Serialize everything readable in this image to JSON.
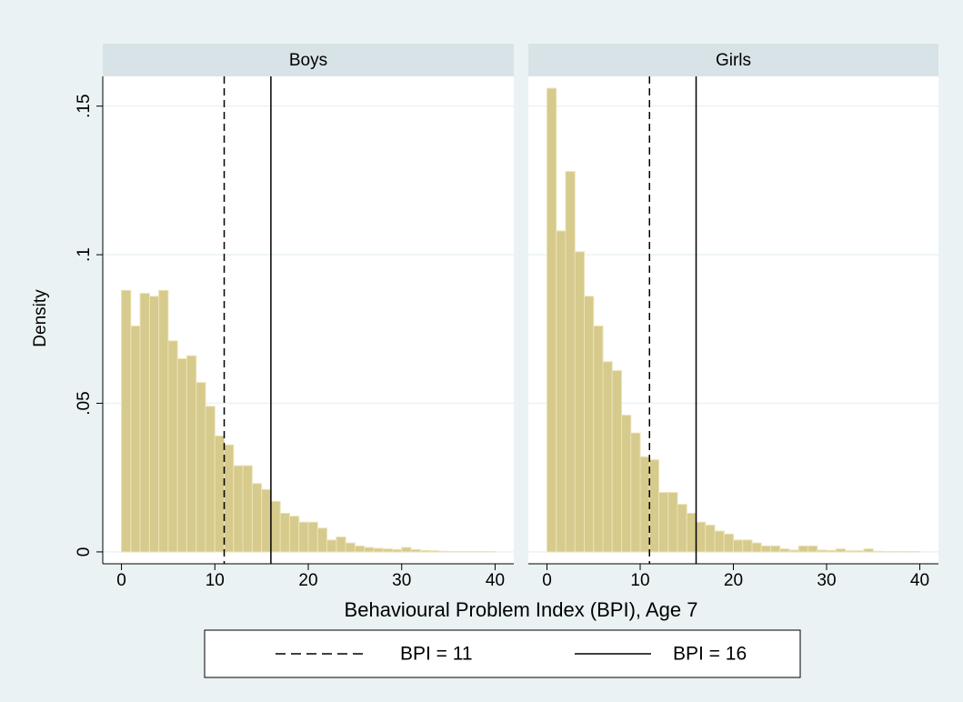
{
  "chart_data": [
    {
      "type": "histogram",
      "title": "Boys",
      "bins": [
        0,
        1,
        2,
        3,
        4,
        5,
        6,
        7,
        8,
        9,
        10,
        11,
        12,
        13,
        14,
        15,
        16,
        17,
        18,
        19,
        20,
        21,
        22,
        23,
        24,
        25,
        26,
        27,
        28,
        29,
        30,
        31,
        32,
        33,
        34,
        35,
        36,
        37,
        38,
        39,
        40
      ],
      "values": [
        0.088,
        0.076,
        0.087,
        0.086,
        0.088,
        0.071,
        0.065,
        0.066,
        0.057,
        0.049,
        0.039,
        0.036,
        0.029,
        0.029,
        0.023,
        0.021,
        0.017,
        0.013,
        0.012,
        0.01,
        0.01,
        0.008,
        0.004,
        0.005,
        0.003,
        0.002,
        0.0015,
        0.0012,
        0.001,
        0.0008,
        0.0015,
        0.0008,
        0.0005,
        0.0004,
        0.0002,
        0.0001,
        0.0001,
        0.0001,
        0.0001,
        0.0001
      ],
      "color": "#d6ca8c",
      "xlim": [
        -2,
        42
      ],
      "ylim": [
        -0.004,
        0.16
      ],
      "xticks": [
        0,
        10,
        20,
        30,
        40
      ],
      "yticks": [
        0,
        {
          "value": 0.05,
          "label": ".05"
        },
        {
          "value": 0.1,
          "label": ".1"
        },
        {
          "value": 0.15,
          "label": ".15"
        }
      ],
      "grid": true
    },
    {
      "type": "histogram",
      "title": "Girls",
      "bins": [
        0,
        1,
        2,
        3,
        4,
        5,
        6,
        7,
        8,
        9,
        10,
        11,
        12,
        13,
        14,
        15,
        16,
        17,
        18,
        19,
        20,
        21,
        22,
        23,
        24,
        25,
        26,
        27,
        28,
        29,
        30,
        31,
        32,
        33,
        34,
        35,
        36,
        37,
        38,
        39,
        40
      ],
      "values": [
        0.156,
        0.108,
        0.128,
        0.101,
        0.086,
        0.076,
        0.064,
        0.061,
        0.046,
        0.04,
        0.032,
        0.031,
        0.02,
        0.02,
        0.016,
        0.013,
        0.01,
        0.009,
        0.007,
        0.006,
        0.004,
        0.004,
        0.003,
        0.002,
        0.002,
        0.001,
        0.0006,
        0.002,
        0.002,
        0.0006,
        0.0005,
        0.001,
        0.0004,
        0.0004,
        0.001,
        0.0002,
        0.0001,
        0.0001,
        0.0001,
        0.0001
      ],
      "color": "#d6ca8c",
      "xlim": [
        -2,
        42
      ],
      "ylim": [
        -0.004,
        0.16
      ],
      "xticks": [
        0,
        10,
        20,
        30,
        40
      ],
      "yticks": [
        0,
        0.05,
        0.1,
        0.15
      ],
      "grid": true
    }
  ],
  "y_label": "Density",
  "x_label": "Behavioural Problem Index (BPI), Age 7",
  "reference_lines": [
    {
      "name": "BPI = 11",
      "value": 11,
      "dashed": true
    },
    {
      "name": "BPI = 16",
      "value": 16,
      "dashed": false
    }
  ]
}
